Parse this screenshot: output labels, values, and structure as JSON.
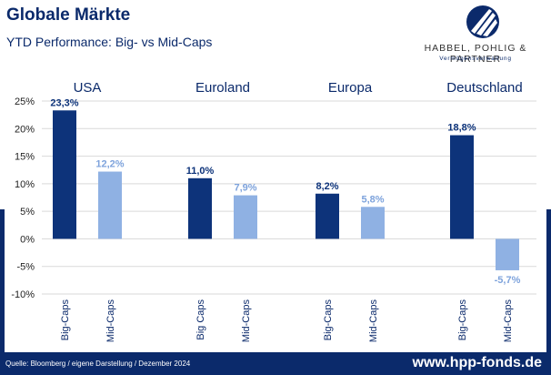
{
  "header": {
    "title": "Globale Märkte",
    "subtitle": "YTD Performance: Big- vs Mid-Caps"
  },
  "logo": {
    "name": "HABBEL, POHLIG & PARTNER",
    "tagline": "Vermögensverwaltung"
  },
  "footer": {
    "source": "Quelle: Bloomberg / eigene Darstellung / Dezember 2024",
    "url": "www.hpp-fonds.de"
  },
  "colors": {
    "brand": "#0b2a6b",
    "big_caps": "#0d337a",
    "mid_caps": "#8fb1e3",
    "mid_label": "#7ea3dc",
    "grid": "#d9d9d9"
  },
  "chart_data": {
    "type": "bar",
    "ylim": [
      -10,
      25
    ],
    "yticks": [
      "25%",
      "20%",
      "15%",
      "10%",
      "5%",
      "0%",
      "-5%",
      "-10%"
    ],
    "grid": true,
    "groups": [
      {
        "name": "USA",
        "bars": [
          {
            "category": "Big-Caps",
            "value": 23.3,
            "label": "23,3%"
          },
          {
            "category": "Mid-Caps",
            "value": 12.2,
            "label": "12,2%"
          }
        ]
      },
      {
        "name": "Euroland",
        "bars": [
          {
            "category": "Big Caps",
            "value": 11.0,
            "label": "11,0%"
          },
          {
            "category": "Mid-Caps",
            "value": 7.9,
            "label": "7,9%"
          }
        ]
      },
      {
        "name": "Europa",
        "bars": [
          {
            "category": "Big-Caps",
            "value": 8.2,
            "label": "8,2%"
          },
          {
            "category": "Mid-Caps",
            "value": 5.8,
            "label": "5,8%"
          }
        ]
      },
      {
        "name": "Deutschland",
        "bars": [
          {
            "category": "Big-Caps",
            "value": 18.8,
            "label": "18,8%"
          },
          {
            "category": "Mid-Caps",
            "value": -5.7,
            "label": "-5,7%"
          }
        ]
      }
    ]
  }
}
